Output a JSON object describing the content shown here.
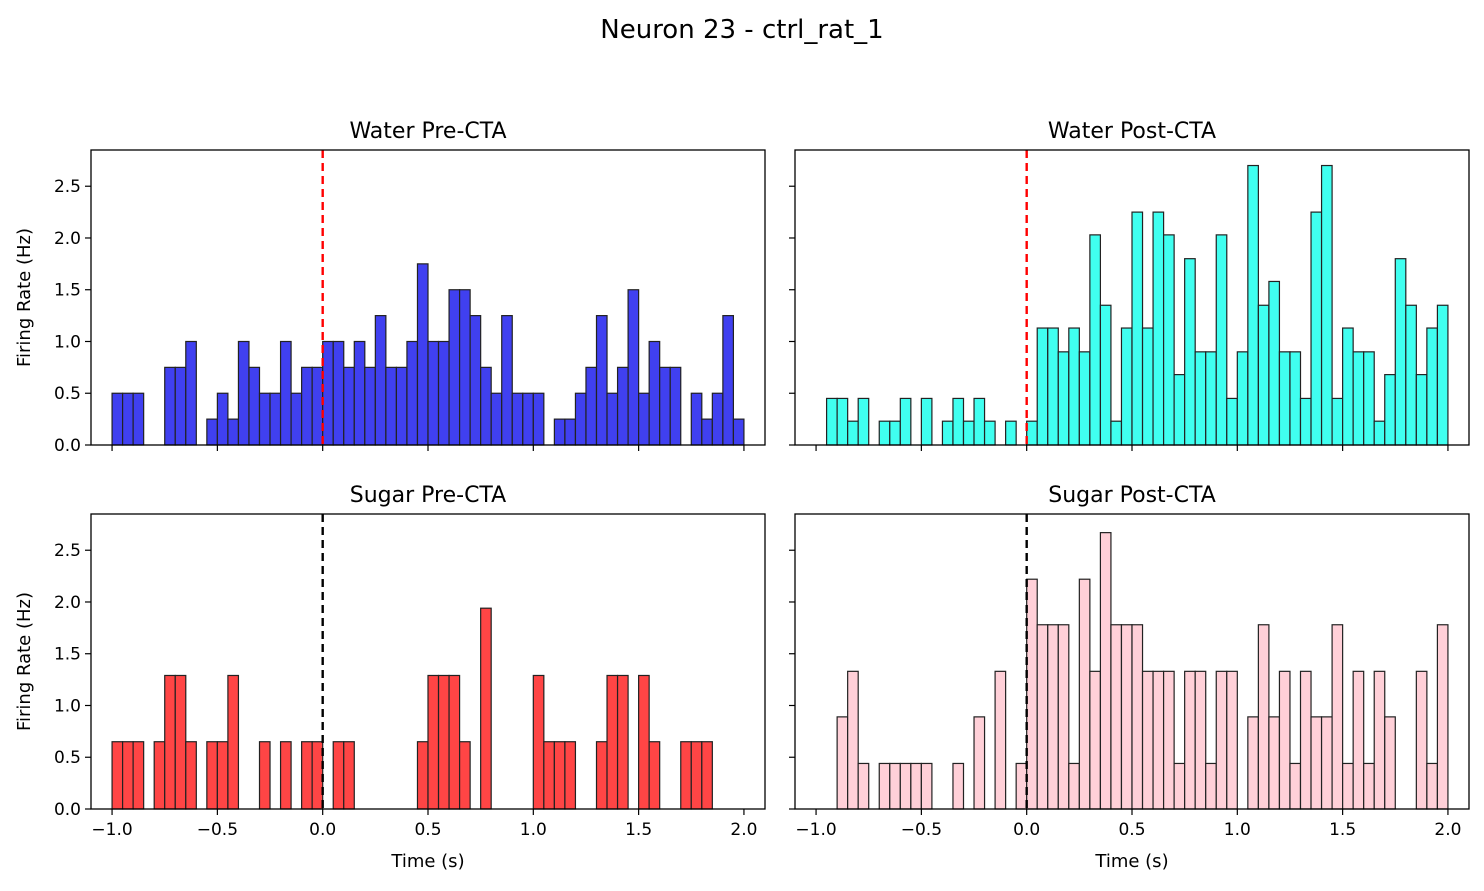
{
  "figure": {
    "suptitle": "Neuron 23 - ctrl_rat_1"
  },
  "chart_data": [
    {
      "type": "bar",
      "title": "Water Pre-CTA",
      "xlabel": "",
      "ylabel": "Firing Rate (Hz)",
      "xlim": [
        -1.1,
        2.1
      ],
      "ylim": [
        0,
        2.85
      ],
      "xticks": [
        "−1.0",
        "−0.5",
        "0.0",
        "0.5",
        "1.0",
        "1.5",
        "2.0"
      ],
      "xtick_values": [
        -1.0,
        -0.5,
        0.0,
        0.5,
        1.0,
        1.5,
        2.0
      ],
      "show_xticklabels": false,
      "yticks": [
        "0.0",
        "0.5",
        "1.0",
        "1.5",
        "2.0",
        "2.5"
      ],
      "ytick_values": [
        0,
        0.5,
        1.0,
        1.5,
        2.0,
        2.5
      ],
      "show_yticklabels": true,
      "bar_color": "#4040f0",
      "vline": {
        "x": 0.0,
        "color": "#ff0000"
      },
      "bin_width": 0.05,
      "bin_starts": [
        -1.0,
        -0.95,
        -0.9,
        -0.85,
        -0.8,
        -0.75,
        -0.7,
        -0.65,
        -0.6,
        -0.55,
        -0.5,
        -0.45,
        -0.4,
        -0.35,
        -0.3,
        -0.25,
        -0.2,
        -0.15,
        -0.1,
        -0.05,
        0.0,
        0.05,
        0.1,
        0.15,
        0.2,
        0.25,
        0.3,
        0.35,
        0.4,
        0.45,
        0.5,
        0.55,
        0.6,
        0.65,
        0.7,
        0.75,
        0.8,
        0.85,
        0.9,
        0.95,
        1.0,
        1.05,
        1.1,
        1.15,
        1.2,
        1.25,
        1.3,
        1.35,
        1.4,
        1.45,
        1.5,
        1.55,
        1.6,
        1.65,
        1.7,
        1.75,
        1.8,
        1.85,
        1.9,
        1.95
      ],
      "values": [
        0.5,
        0.5,
        0.5,
        0,
        0,
        0.75,
        0.75,
        1.0,
        0,
        0.25,
        0.5,
        0.25,
        1.0,
        0.75,
        0.5,
        0.5,
        1.0,
        0.5,
        0.75,
        0.75,
        1.0,
        1.0,
        0.75,
        1.0,
        0.75,
        1.25,
        0.75,
        0.75,
        1.0,
        1.75,
        1.0,
        1.0,
        1.5,
        1.5,
        1.25,
        0.75,
        0.5,
        1.25,
        0.5,
        0.5,
        0.5,
        0,
        0.25,
        0.25,
        0.5,
        0.75,
        1.25,
        0.5,
        0.75,
        1.5,
        0.5,
        1.0,
        0.75,
        0.75,
        0,
        0.5,
        0.25,
        0.5,
        1.25,
        0.25
      ]
    },
    {
      "type": "bar",
      "title": "Water Post-CTA",
      "xlabel": "",
      "ylabel": "",
      "xlim": [
        -1.1,
        2.1
      ],
      "ylim": [
        0,
        2.85
      ],
      "xticks": [
        "−1.0",
        "−0.5",
        "0.0",
        "0.5",
        "1.0",
        "1.5",
        "2.0"
      ],
      "xtick_values": [
        -1.0,
        -0.5,
        0.0,
        0.5,
        1.0,
        1.5,
        2.0
      ],
      "show_xticklabels": false,
      "yticks": [
        "0.0",
        "0.5",
        "1.0",
        "1.5",
        "2.0",
        "2.5"
      ],
      "ytick_values": [
        0,
        0.5,
        1.0,
        1.5,
        2.0,
        2.5
      ],
      "show_yticklabels": false,
      "bar_color": "#40fff0",
      "vline": {
        "x": 0.0,
        "color": "#ff0000"
      },
      "bin_width": 0.05,
      "bin_starts": [
        -1.0,
        -0.95,
        -0.9,
        -0.85,
        -0.8,
        -0.75,
        -0.7,
        -0.65,
        -0.6,
        -0.55,
        -0.5,
        -0.45,
        -0.4,
        -0.35,
        -0.3,
        -0.25,
        -0.2,
        -0.15,
        -0.1,
        -0.05,
        0.0,
        0.05,
        0.1,
        0.15,
        0.2,
        0.25,
        0.3,
        0.35,
        0.4,
        0.45,
        0.5,
        0.55,
        0.6,
        0.65,
        0.7,
        0.75,
        0.8,
        0.85,
        0.9,
        0.95,
        1.0,
        1.05,
        1.1,
        1.15,
        1.2,
        1.25,
        1.3,
        1.35,
        1.4,
        1.45,
        1.5,
        1.55,
        1.6,
        1.65,
        1.7,
        1.75,
        1.8,
        1.85,
        1.9,
        1.95
      ],
      "values": [
        0,
        0.45,
        0.45,
        0.23,
        0.45,
        0,
        0.23,
        0.23,
        0.45,
        0,
        0.45,
        0,
        0.23,
        0.45,
        0.23,
        0.45,
        0.23,
        0,
        0.23,
        0,
        0.23,
        1.13,
        1.13,
        0.9,
        1.13,
        0.9,
        2.03,
        1.35,
        0.23,
        1.13,
        2.25,
        1.13,
        2.25,
        2.03,
        0.68,
        1.8,
        0.9,
        0.9,
        2.03,
        0.45,
        0.9,
        2.7,
        1.35,
        1.58,
        0.9,
        0.9,
        0.45,
        2.25,
        2.7,
        0.45,
        1.13,
        0.9,
        0.9,
        0.23,
        0.68,
        1.8,
        1.35,
        0.68,
        1.13,
        1.35
      ]
    },
    {
      "type": "bar",
      "title": "Sugar Pre-CTA",
      "xlabel": "Time (s)",
      "ylabel": "Firing Rate (Hz)",
      "xlim": [
        -1.1,
        2.1
      ],
      "ylim": [
        0,
        2.85
      ],
      "xticks": [
        "−1.0",
        "−0.5",
        "0.0",
        "0.5",
        "1.0",
        "1.5",
        "2.0"
      ],
      "xtick_values": [
        -1.0,
        -0.5,
        0.0,
        0.5,
        1.0,
        1.5,
        2.0
      ],
      "show_xticklabels": true,
      "yticks": [
        "0.0",
        "0.5",
        "1.0",
        "1.5",
        "2.0",
        "2.5"
      ],
      "ytick_values": [
        0,
        0.5,
        1.0,
        1.5,
        2.0,
        2.5
      ],
      "show_yticklabels": true,
      "bar_color": "#ff4545",
      "vline": {
        "x": 0.0,
        "color": "#000000"
      },
      "bin_width": 0.05,
      "bin_starts": [
        -1.0,
        -0.95,
        -0.9,
        -0.85,
        -0.8,
        -0.75,
        -0.7,
        -0.65,
        -0.6,
        -0.55,
        -0.5,
        -0.45,
        -0.4,
        -0.35,
        -0.3,
        -0.25,
        -0.2,
        -0.15,
        -0.1,
        -0.05,
        0.0,
        0.05,
        0.1,
        0.15,
        0.2,
        0.25,
        0.3,
        0.35,
        0.4,
        0.45,
        0.5,
        0.55,
        0.6,
        0.65,
        0.7,
        0.75,
        0.8,
        0.85,
        0.9,
        0.95,
        1.0,
        1.05,
        1.1,
        1.15,
        1.2,
        1.25,
        1.3,
        1.35,
        1.4,
        1.45,
        1.5,
        1.55,
        1.6,
        1.65,
        1.7,
        1.75,
        1.8,
        1.85,
        1.9,
        1.95
      ],
      "values": [
        0.65,
        0.65,
        0.65,
        0,
        0.65,
        1.29,
        1.29,
        0.65,
        0,
        0.65,
        0.65,
        1.29,
        0,
        0,
        0.65,
        0,
        0.65,
        0,
        0.65,
        0.65,
        0,
        0.65,
        0.65,
        0,
        0,
        0,
        0,
        0,
        0,
        0.65,
        1.29,
        1.29,
        1.29,
        0.65,
        0,
        1.94,
        0,
        0,
        0,
        0,
        1.29,
        0.65,
        0.65,
        0.65,
        0,
        0,
        0.65,
        1.29,
        1.29,
        0,
        1.29,
        0.65,
        0,
        0,
        0.65,
        0.65,
        0.65,
        0,
        0,
        0
      ]
    },
    {
      "type": "bar",
      "title": "Sugar Post-CTA",
      "xlabel": "Time (s)",
      "ylabel": "",
      "xlim": [
        -1.1,
        2.1
      ],
      "ylim": [
        0,
        2.85
      ],
      "xticks": [
        "−1.0",
        "−0.5",
        "0.0",
        "0.5",
        "1.0",
        "1.5",
        "2.0"
      ],
      "xtick_values": [
        -1.0,
        -0.5,
        0.0,
        0.5,
        1.0,
        1.5,
        2.0
      ],
      "show_xticklabels": true,
      "yticks": [
        "0.0",
        "0.5",
        "1.0",
        "1.5",
        "2.0",
        "2.5"
      ],
      "ytick_values": [
        0,
        0.5,
        1.0,
        1.5,
        2.0,
        2.5
      ],
      "show_yticklabels": false,
      "bar_color": "#ffd0d8",
      "vline": {
        "x": 0.0,
        "color": "#000000"
      },
      "bin_width": 0.05,
      "bin_starts": [
        -1.0,
        -0.95,
        -0.9,
        -0.85,
        -0.8,
        -0.75,
        -0.7,
        -0.65,
        -0.6,
        -0.55,
        -0.5,
        -0.45,
        -0.4,
        -0.35,
        -0.3,
        -0.25,
        -0.2,
        -0.15,
        -0.1,
        -0.05,
        0.0,
        0.05,
        0.1,
        0.15,
        0.2,
        0.25,
        0.3,
        0.35,
        0.4,
        0.45,
        0.5,
        0.55,
        0.6,
        0.65,
        0.7,
        0.75,
        0.8,
        0.85,
        0.9,
        0.95,
        1.0,
        1.05,
        1.1,
        1.15,
        1.2,
        1.25,
        1.3,
        1.35,
        1.4,
        1.45,
        1.5,
        1.55,
        1.6,
        1.65,
        1.7,
        1.75,
        1.8,
        1.85,
        1.9,
        1.95
      ],
      "values": [
        0,
        0,
        0.89,
        1.33,
        0.44,
        0,
        0.44,
        0.44,
        0.44,
        0.44,
        0.44,
        0,
        0,
        0.44,
        0,
        0.89,
        0,
        1.33,
        0,
        0.44,
        2.22,
        1.78,
        1.78,
        1.78,
        0.44,
        2.22,
        1.33,
        2.67,
        1.78,
        1.78,
        1.78,
        1.33,
        1.33,
        1.33,
        0.44,
        1.33,
        1.33,
        0.44,
        1.33,
        1.33,
        0,
        0.89,
        1.78,
        0.89,
        1.33,
        0.44,
        1.33,
        0.89,
        0.89,
        1.78,
        0.44,
        1.33,
        0.44,
        1.33,
        0.89,
        0,
        0,
        1.33,
        0.44,
        1.78
      ]
    }
  ]
}
